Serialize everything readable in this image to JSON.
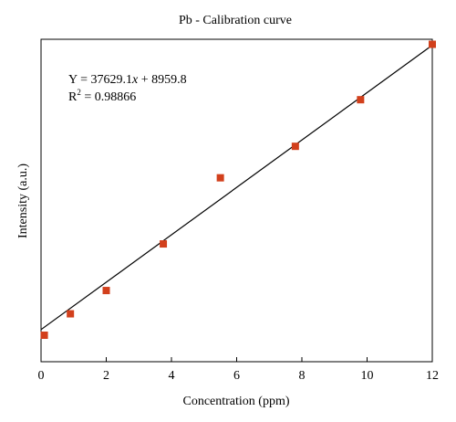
{
  "chart_data": {
    "type": "scatter",
    "title": "Pb - Calibration curve",
    "xlabel": "Concentration (ppm)",
    "ylabel": "Intensity (a.u.)",
    "xlim": [
      0,
      12
    ],
    "ylim": [
      0,
      470000
    ],
    "xticks": [
      0,
      2,
      4,
      6,
      8,
      10,
      12
    ],
    "grid": false,
    "annotation": {
      "equation_prefix": "Y = 37629.1",
      "equation_var": "x",
      "equation_suffix": " + 8959.8",
      "r2_prefix": "R",
      "r2_sup": "2",
      "r2_value": " = 0.98866"
    },
    "fit": {
      "slope": 37629.1,
      "intercept": 8959.8
    },
    "series": [
      {
        "marker": "square",
        "color": "#d2401c",
        "points": [
          {
            "x": 0.1,
            "y": 0
          },
          {
            "x": 0.9,
            "y": 34000
          },
          {
            "x": 2.0,
            "y": 71000
          },
          {
            "x": 3.75,
            "y": 145000
          },
          {
            "x": 5.5,
            "y": 250000
          },
          {
            "x": 7.8,
            "y": 300000
          },
          {
            "x": 9.8,
            "y": 374000
          },
          {
            "x": 12.0,
            "y": 462000
          }
        ]
      }
    ],
    "line_color": "#000000"
  }
}
